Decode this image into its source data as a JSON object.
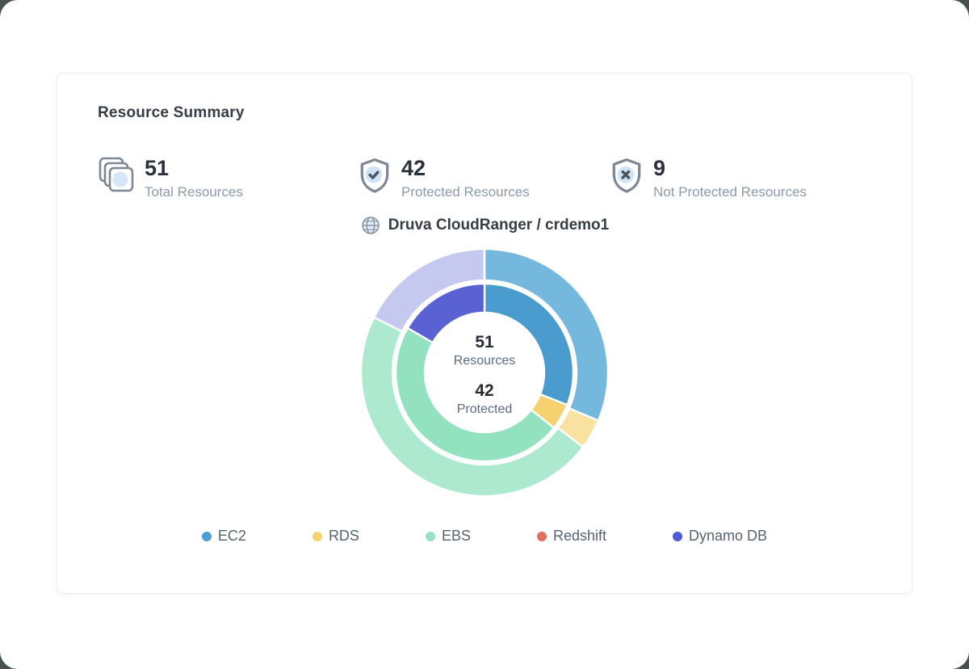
{
  "theme": {
    "corner_bg": "#46524b",
    "card_border": "#e9ebee",
    "title_color": "#363d45",
    "stat_value_color": "#2b323c",
    "stat_label_color": "#8d9aa9",
    "icon_stroke": "#7d8894",
    "icon_dark": "#4a5560",
    "icon_accent": "#cfe4f6",
    "center_value_color": "#262c33",
    "center_label_color": "#5b6b80",
    "legend_text_color": "#57636f",
    "slice_separator": "#ffffff"
  },
  "card": {
    "title": "Resource Summary"
  },
  "stats": [
    {
      "icon": "stacked-resources-icon",
      "value": "51",
      "label": "Total Resources"
    },
    {
      "icon": "shield-check-icon",
      "value": "42",
      "label": "Protected Resources"
    },
    {
      "icon": "shield-x-icon",
      "value": "9",
      "label": "Not Protected Resources"
    }
  ],
  "chart_header": {
    "icon": "globe-icon",
    "label": "Druva CloudRanger / crdemo1"
  },
  "chart_data": {
    "type": "pie",
    "subtype": "double-ring-donut",
    "title": "Druva CloudRanger / crdemo1",
    "start_angle_deg": 0,
    "direction": "clockwise",
    "center": [
      158,
      158
    ],
    "center_labels": [
      {
        "value": "51",
        "label": "Resources"
      },
      {
        "value": "42",
        "label": "Protected"
      }
    ],
    "categories": [
      "EC2",
      "RDS",
      "EBS",
      "Redshift",
      "Dynamo DB"
    ],
    "rings": [
      {
        "name": "Total Resources",
        "total": 51,
        "radius_inner": 114,
        "radius_outer": 153,
        "values": [
          16,
          2,
          24,
          0,
          9
        ],
        "colors": [
          "#74b9dd",
          "#f9e2a1",
          "#ace9cf",
          "#f0b2a9",
          "#c5c8ef"
        ]
      },
      {
        "name": "Protected Resources",
        "total": 42,
        "radius_inner": 74,
        "radius_outer": 110,
        "values": [
          13,
          2,
          20,
          0,
          7
        ],
        "colors": [
          "#4a9cce",
          "#f6d26e",
          "#92e1bf",
          "#e0705f",
          "#5a62d3"
        ]
      }
    ],
    "legend_position": "bottom",
    "legend": [
      {
        "label": "EC2",
        "color": "#4ba2d2"
      },
      {
        "label": "RDS",
        "color": "#f5d470"
      },
      {
        "label": "EBS",
        "color": "#93e2c2"
      },
      {
        "label": "Redshift",
        "color": "#e0705f"
      },
      {
        "label": "Dynamo DB",
        "color": "#5159d6"
      }
    ]
  }
}
